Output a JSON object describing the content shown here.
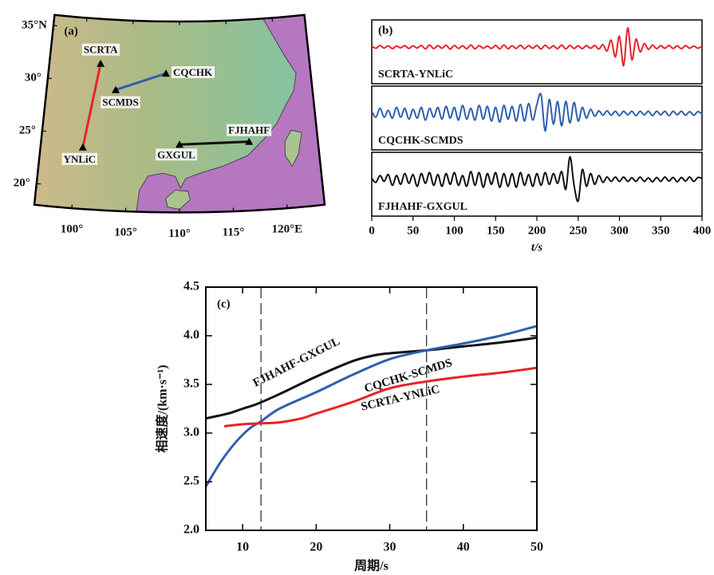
{
  "chart_data": [
    {
      "type": "map",
      "panel": "(a)",
      "xlim": [
        96.5,
        123.5
      ],
      "ylim": [
        18,
        36
      ],
      "xticks": [
        {
          "value": 100,
          "label": "100°"
        },
        {
          "value": 105,
          "label": "105°"
        },
        {
          "value": 110,
          "label": "110°"
        },
        {
          "value": 115,
          "label": "115°"
        },
        {
          "value": 120,
          "label": "120°E"
        }
      ],
      "yticks": [
        {
          "value": 20,
          "label": "20°"
        },
        {
          "value": 25,
          "label": "25°"
        },
        {
          "value": 30,
          "label": "30°"
        },
        {
          "value": 35,
          "label": "35°N"
        }
      ],
      "land_color": "#b9b888",
      "sea_color": "#b477c0",
      "paths": [
        {
          "color": "#e8232a",
          "stations": [
            {
              "name": "SCRTA",
              "lon": 101.8,
              "lat": 31.8
            },
            {
              "name": "YNLiC",
              "lon": 100.6,
              "lat": 23.8
            }
          ]
        },
        {
          "color": "#2e5fae",
          "stations": [
            {
              "name": "CQCHK",
              "lon": 108.6,
              "lat": 31.1
            },
            {
              "name": "SCMDS",
              "lon": 103.5,
              "lat": 29.4
            }
          ]
        },
        {
          "color": "#111111",
          "stations": [
            {
              "name": "FJHAHF",
              "lon": 116.8,
              "lat": 24.5
            },
            {
              "name": "GXGUL",
              "lon": 110.0,
              "lat": 24.4
            }
          ]
        }
      ]
    },
    {
      "type": "waveform",
      "panel": "(b)",
      "xlabel": "t/s",
      "xlim": [
        0,
        400
      ],
      "xticks": [
        0,
        50,
        100,
        150,
        200,
        250,
        300,
        350,
        400
      ],
      "ylim": [
        -1.3,
        1.3
      ],
      "x": [
        0,
        5,
        10,
        15,
        20,
        25,
        30,
        35,
        40,
        45,
        50,
        55,
        60,
        65,
        70,
        75,
        80,
        85,
        90,
        95,
        100,
        105,
        110,
        115,
        120,
        125,
        130,
        135,
        140,
        145,
        150,
        155,
        160,
        165,
        170,
        175,
        180,
        185,
        190,
        195,
        200,
        205,
        210,
        215,
        220,
        225,
        230,
        235,
        240,
        245,
        250,
        255,
        260,
        265,
        270,
        275,
        280,
        285,
        290,
        295,
        300,
        305,
        310,
        315,
        320,
        325,
        330,
        335,
        340,
        345,
        350,
        355,
        360,
        365,
        370,
        375,
        380,
        385,
        390,
        395,
        400
      ],
      "series": [
        {
          "name": "SCRTA-YNLiC",
          "color": "#e8232a",
          "values": [
            0.05,
            -0.06,
            0.08,
            -0.05,
            0.06,
            -0.08,
            0.05,
            -0.04,
            0.07,
            -0.07,
            0.06,
            -0.05,
            0.08,
            -0.09,
            0.1,
            -0.08,
            0.07,
            -0.06,
            0.09,
            -0.1,
            0.08,
            -0.07,
            0.06,
            -0.08,
            0.1,
            -0.09,
            0.07,
            -0.06,
            0.05,
            -0.07,
            0.08,
            -0.09,
            0.1,
            -0.08,
            0.06,
            -0.07,
            0.09,
            -0.08,
            0.07,
            -0.06,
            0.08,
            -0.1,
            0.09,
            -0.07,
            0.06,
            -0.08,
            0.1,
            -0.09,
            0.08,
            -0.07,
            0.06,
            -0.08,
            0.07,
            -0.06,
            0.08,
            -0.1,
            0.12,
            -0.2,
            0.35,
            -0.5,
            0.55,
            -0.95,
            0.98,
            -0.65,
            0.4,
            -0.25,
            0.18,
            -0.12,
            0.1,
            -0.08,
            0.07,
            -0.06,
            0.08,
            -0.07,
            0.06,
            -0.08,
            0.07,
            -0.06,
            0.05,
            -0.06,
            0.05
          ]
        },
        {
          "name": "CQCHK-SCMDS",
          "color": "#2e5fae",
          "values": [
            0.1,
            -0.2,
            0.25,
            -0.2,
            0.15,
            -0.25,
            0.3,
            -0.2,
            0.25,
            -0.3,
            0.2,
            -0.25,
            0.3,
            -0.35,
            0.25,
            -0.2,
            0.3,
            -0.3,
            0.35,
            -0.25,
            0.3,
            -0.35,
            0.4,
            -0.3,
            0.25,
            -0.35,
            0.4,
            -0.3,
            0.35,
            -0.4,
            0.3,
            -0.45,
            0.4,
            -0.3,
            0.35,
            -0.4,
            0.45,
            -0.4,
            0.5,
            -0.35,
            0.45,
            0.95,
            -0.9,
            0.7,
            -0.55,
            0.6,
            -0.65,
            0.6,
            -0.5,
            0.55,
            -0.4,
            0.3,
            -0.25,
            0.2,
            -0.15,
            0.12,
            -0.1,
            0.12,
            -0.1,
            0.1,
            -0.12,
            0.1,
            -0.08,
            0.1,
            -0.12,
            0.1,
            -0.08,
            0.1,
            -0.12,
            0.1,
            -0.08,
            0.1,
            -0.12,
            0.1,
            -0.08,
            0.1,
            -0.1,
            0.08,
            -0.1,
            0.08,
            -0.05
          ]
        },
        {
          "name": "FJHAHF-GXGUL",
          "color": "#111111",
          "values": [
            0.05,
            -0.15,
            0.2,
            -0.1,
            0.25,
            -0.3,
            0.2,
            -0.25,
            0.3,
            -0.2,
            0.25,
            -0.35,
            0.3,
            -0.2,
            0.35,
            -0.3,
            0.25,
            -0.35,
            0.3,
            -0.25,
            0.35,
            -0.3,
            0.2,
            -0.35,
            0.4,
            -0.3,
            0.35,
            -0.4,
            0.3,
            -0.25,
            0.35,
            -0.4,
            0.3,
            -0.35,
            0.3,
            -0.4,
            0.35,
            -0.3,
            0.25,
            -0.35,
            0.3,
            -0.3,
            0.35,
            -0.25,
            0.3,
            -0.2,
            0.4,
            -0.5,
            1.15,
            -0.3,
            -1.1,
            0.5,
            -0.35,
            0.3,
            -0.25,
            0.2,
            -0.15,
            0.12,
            -0.1,
            0.12,
            -0.1,
            0.12,
            -0.1,
            0.08,
            -0.1,
            0.12,
            -0.1,
            0.08,
            -0.12,
            0.1,
            -0.1,
            0.12,
            -0.08,
            0.1,
            -0.12,
            0.1,
            -0.08,
            0.12,
            -0.1,
            0.1,
            0.05
          ]
        }
      ]
    },
    {
      "type": "line",
      "panel": "(c)",
      "xlabel": "周期/s",
      "ylabel": "相速度/(km·s⁻¹)",
      "xlim": [
        5,
        50
      ],
      "ylim": [
        2,
        4.5
      ],
      "xticks": [
        10,
        20,
        30,
        40,
        50
      ],
      "yticks": [
        {
          "value": 2,
          "label": "2.0"
        },
        2.5,
        {
          "value": 3,
          "label": "3.0"
        },
        3.5,
        {
          "value": 4,
          "label": "4.0"
        },
        4.5
      ],
      "vlines": [
        12.5,
        35
      ],
      "series": [
        {
          "name": "FJHAHF-GXGUL",
          "color": "#111111",
          "x": [
            5,
            8,
            10,
            12,
            15,
            20,
            25,
            28,
            30,
            35,
            40,
            45,
            50
          ],
          "values": [
            3.15,
            3.2,
            3.25,
            3.3,
            3.4,
            3.58,
            3.74,
            3.8,
            3.82,
            3.85,
            3.89,
            3.93,
            3.98
          ]
        },
        {
          "name": "CQCHK-SCMDS",
          "color": "#2e5fae",
          "x": [
            5,
            7,
            9,
            11,
            12.5,
            15,
            20,
            25,
            30,
            35,
            40,
            45,
            50
          ],
          "values": [
            2.45,
            2.7,
            2.9,
            3.05,
            3.12,
            3.25,
            3.42,
            3.6,
            3.76,
            3.85,
            3.92,
            4.0,
            4.1
          ]
        },
        {
          "name": "SCRTA-YNLiC",
          "color": "#e8232a",
          "x": [
            7.5,
            10,
            12.5,
            15,
            18,
            20,
            25,
            30,
            35,
            40,
            45,
            50
          ],
          "values": [
            3.07,
            3.09,
            3.1,
            3.11,
            3.15,
            3.2,
            3.32,
            3.46,
            3.53,
            3.58,
            3.62,
            3.67
          ]
        }
      ]
    }
  ]
}
